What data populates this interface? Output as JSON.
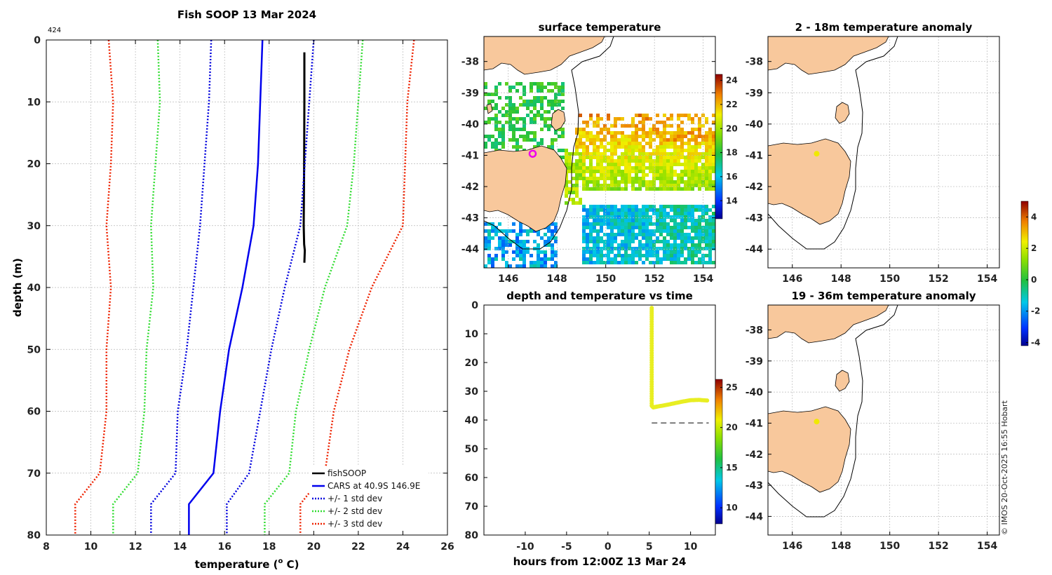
{
  "colors": {
    "land": "#f8c89c",
    "cars": "#0000ee",
    "fish": "#000000",
    "sd1": "#0000dd",
    "sd2": "#33dd33",
    "sd3": "#ee2200",
    "dot_magenta": "#ee00ee",
    "dot_yellow": "#f4e200",
    "grid": "#b8b8b8"
  },
  "credit": "© IMOS 20-Oct-2025 16:55 Hobart",
  "chart_data": [
    {
      "id": "profile",
      "type": "line",
      "title": "Fish SOOP 13 Mar 2024",
      "corner_label": "424",
      "xlabel": "temperature (°C)",
      "ylabel": "depth (m)",
      "xlim": [
        8,
        26
      ],
      "ylim": [
        0,
        80
      ],
      "y_reversed": true,
      "xticks": [
        "8",
        "10",
        "12",
        "14",
        "16",
        "18",
        "20",
        "22",
        "24",
        "26"
      ],
      "yticks": [
        "0",
        "10",
        "20",
        "30",
        "40",
        "50",
        "60",
        "70",
        "80"
      ],
      "legend": [
        "fishSOOP",
        "CARS at 40.9S 146.9E",
        "+/- 1 std dev",
        "+/- 2 std dev",
        "+/- 3 std dev"
      ],
      "depths": [
        0,
        10,
        20,
        30,
        40,
        50,
        60,
        70,
        75,
        80
      ],
      "series": [
        {
          "name": "fishSOOP",
          "color": "#000000",
          "style": "solid",
          "width": 3,
          "points": [
            [
              19.58,
              2
            ],
            [
              19.58,
              10
            ],
            [
              19.57,
              20
            ],
            [
              19.55,
              30
            ],
            [
              19.57,
              33
            ],
            [
              19.6,
              34
            ],
            [
              19.58,
              36
            ]
          ]
        },
        {
          "name": "CARS at 40.9S 146.9E",
          "color": "#0000ee",
          "style": "solid",
          "width": 2.5,
          "values": [
            17.7,
            17.6,
            17.5,
            17.3,
            16.8,
            16.2,
            15.8,
            15.5,
            14.4,
            14.4
          ]
        },
        {
          "name": "CARS +1 std",
          "color": "#0000dd",
          "style": "dot",
          "values": [
            20.0,
            19.8,
            19.6,
            19.4,
            18.7,
            18.1,
            17.6,
            17.1,
            16.1,
            16.1
          ]
        },
        {
          "name": "CARS -1 std",
          "color": "#0000dd",
          "style": "dot",
          "values": [
            15.4,
            15.3,
            15.1,
            14.9,
            14.6,
            14.3,
            13.9,
            13.8,
            12.7,
            12.7
          ]
        },
        {
          "name": "CARS +2 std",
          "color": "#33dd33",
          "style": "dot",
          "values": [
            22.2,
            22.0,
            21.8,
            21.5,
            20.5,
            19.8,
            19.2,
            18.9,
            17.8,
            17.8
          ]
        },
        {
          "name": "CARS -2 std",
          "color": "#33dd33",
          "style": "dot",
          "values": [
            13.0,
            13.1,
            12.9,
            12.7,
            12.8,
            12.5,
            12.4,
            12.1,
            11.0,
            11.0
          ]
        },
        {
          "name": "CARS +3 std",
          "color": "#ee2200",
          "style": "dot",
          "values": [
            24.5,
            24.2,
            24.1,
            24.0,
            22.6,
            21.6,
            20.9,
            20.5,
            19.4,
            19.4
          ]
        },
        {
          "name": "CARS -3 std",
          "color": "#ee2200",
          "style": "dot",
          "values": [
            10.8,
            11.0,
            10.9,
            10.7,
            10.9,
            10.7,
            10.7,
            10.4,
            9.3,
            9.3
          ]
        }
      ]
    },
    {
      "id": "surface",
      "type": "heatmap",
      "title": "surface temperature",
      "xlim": [
        145,
        154.5
      ],
      "ylim": [
        -44.6,
        -37.2
      ],
      "xticks": [
        "146",
        "148",
        "150",
        "152",
        "154"
      ],
      "yticks": [
        "-38",
        "-39",
        "-40",
        "-41",
        "-42",
        "-43",
        "-44"
      ],
      "colorbar": {
        "range": [
          12.5,
          24.5
        ],
        "ticks": [
          "14",
          "16",
          "18",
          "20",
          "22",
          "24"
        ]
      },
      "marker": {
        "lon": 147.0,
        "lat": -40.95,
        "color": "#ee00ee"
      }
    },
    {
      "id": "timeseries",
      "type": "scatter",
      "title": "depth and temperature vs time",
      "xlabel": "hours from 12:00Z 13 Mar 24",
      "xlim": [
        -15,
        13
      ],
      "ylim": [
        0,
        80
      ],
      "y_reversed": true,
      "xticks": [
        "-10",
        "-5",
        "0",
        "5",
        "10"
      ],
      "yticks": [
        "0",
        "10",
        "20",
        "30",
        "40",
        "50",
        "60",
        "70",
        "80"
      ],
      "colorbar": {
        "range": [
          8,
          26
        ],
        "ticks": [
          "10",
          "15",
          "20",
          "25"
        ]
      },
      "points": [
        [
          5.3,
          1
        ],
        [
          5.3,
          5
        ],
        [
          5.3,
          10
        ],
        [
          5.3,
          15
        ],
        [
          5.3,
          20
        ],
        [
          5.3,
          25
        ],
        [
          5.3,
          30
        ],
        [
          5.3,
          35
        ],
        [
          5.5,
          35.6
        ],
        [
          6,
          35.3
        ],
        [
          7,
          34.8
        ],
        [
          8,
          34.2
        ],
        [
          9,
          33.6
        ],
        [
          10,
          33.1
        ],
        [
          11,
          33.0
        ],
        [
          12,
          33.2
        ]
      ],
      "point_value": 19.6,
      "bottom_line": {
        "depth": 41,
        "x_start": 5.3,
        "x_end": 12.2
      }
    },
    {
      "id": "anomaly_top",
      "type": "map",
      "title": "2 - 18m temperature anomaly",
      "xlim": [
        145,
        154.5
      ],
      "ylim": [
        -44.6,
        -37.2
      ],
      "xticks": [
        "146",
        "148",
        "150",
        "152",
        "154"
      ],
      "yticks": [
        "-38",
        "-39",
        "-40",
        "-41",
        "-42",
        "-43",
        "-44"
      ],
      "marker": {
        "lon": 147.0,
        "lat": -40.95,
        "value": 2.5
      }
    },
    {
      "id": "anomaly_bottom",
      "type": "map",
      "title": "19 - 36m temperature anomaly",
      "xlim": [
        145,
        154.5
      ],
      "ylim": [
        -44.6,
        -37.2
      ],
      "xticks": [
        "146",
        "148",
        "150",
        "152",
        "154"
      ],
      "yticks": [
        "-38",
        "-39",
        "-40",
        "-41",
        "-42",
        "-43",
        "-44"
      ],
      "marker": {
        "lon": 147.0,
        "lat": -40.95,
        "value": 2.5
      }
    },
    {
      "id": "anomaly_colorbar",
      "type": "colorbar",
      "range": [
        -4.2,
        5
      ],
      "ticks": [
        "4",
        "2",
        "0",
        "-2",
        "-4"
      ]
    }
  ]
}
